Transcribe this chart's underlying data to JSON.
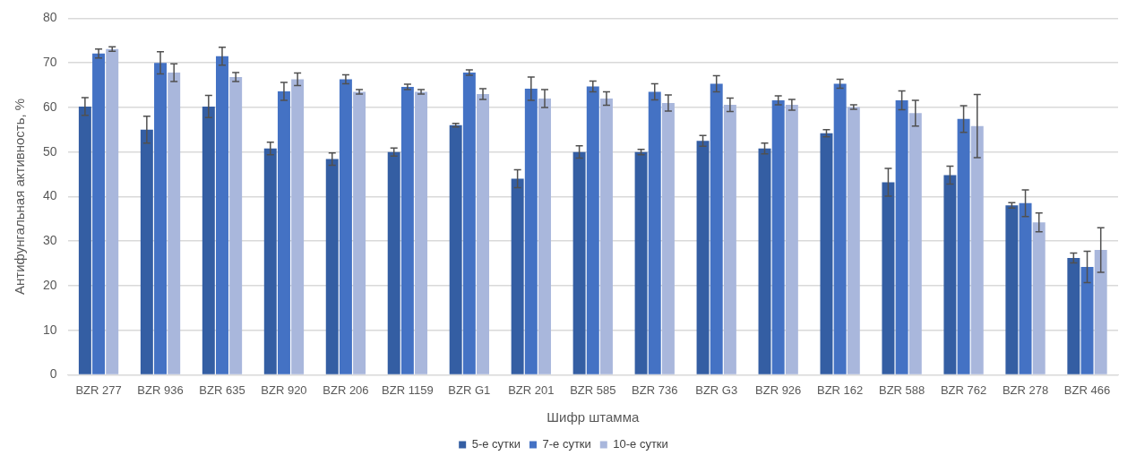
{
  "chart_data": {
    "type": "bar",
    "xlabel": "Шифр штамма",
    "ylabel": "Антифунгальная активность, %",
    "categories": [
      "BZR 277",
      "BZR 936",
      "BZR 635",
      "BZR 920",
      "BZR 206",
      "BZR 1159",
      "BZR G1",
      "BZR 201",
      "BZR 585",
      "BZR 736",
      "BZR G3",
      "BZR 926",
      "BZR 162",
      "BZR 588",
      "BZR 762",
      "BZR 278",
      "BZR 466"
    ],
    "series": [
      {
        "name": "5-е сутки",
        "color": "#345ea3",
        "values": [
          60.2,
          55,
          60.2,
          50.8,
          48.4,
          50,
          56,
          44,
          50,
          50,
          52.5,
          50.8,
          54.2,
          43.2,
          44.8,
          38,
          26.2
        ],
        "errors": [
          2,
          3,
          2.5,
          1.4,
          1.4,
          0.9,
          0.4,
          2,
          1.4,
          0.6,
          1.2,
          1.2,
          0.8,
          3.1,
          2,
          0.6,
          1.1
        ]
      },
      {
        "name": "7-е сутки",
        "color": "#4472c4",
        "values": [
          72.1,
          70,
          71.5,
          63.6,
          66.3,
          64.6,
          67.8,
          64.2,
          64.7,
          63.5,
          65.3,
          61.6,
          65.3,
          61.6,
          57.4,
          38.5,
          24.2
        ],
        "errors": [
          1,
          2.5,
          2,
          2,
          1,
          0.6,
          0.6,
          2.6,
          1.2,
          1.8,
          1.8,
          1,
          1,
          2.1,
          3,
          3,
          3.5
        ]
      },
      {
        "name": "10-е сутки",
        "color": "#a9b7dc",
        "values": [
          73.1,
          67.8,
          66.8,
          66.3,
          63.5,
          63.5,
          63,
          62,
          62,
          61,
          60.6,
          60.6,
          60.1,
          58.7,
          55.8,
          34.2,
          28
        ],
        "errors": [
          0.5,
          2,
          1,
          1.4,
          0.5,
          0.5,
          1.2,
          2,
          1.5,
          1.8,
          1.5,
          1.2,
          0.5,
          2.9,
          7.1,
          2.1,
          5
        ]
      }
    ],
    "ylim": [
      0,
      80
    ],
    "yticks": [
      0,
      10,
      20,
      30,
      40,
      50,
      60,
      70,
      80
    ],
    "grid": "y",
    "legend": "bottom"
  }
}
